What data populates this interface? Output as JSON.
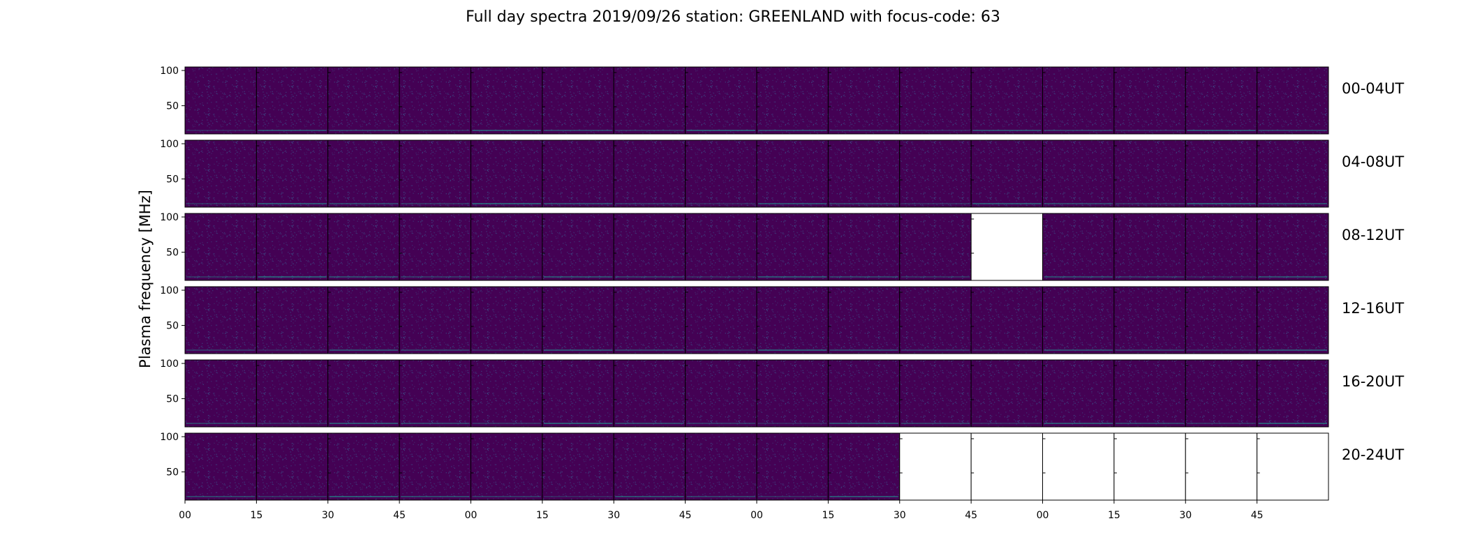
{
  "chart_data": {
    "type": "heatmap",
    "title": "Full day spectra 2019/09/26 station: GREENLAND with focus-code: 63",
    "ylabel": "Plasma frequency [MHz]",
    "xlabel": "",
    "ylim": [
      10,
      105
    ],
    "yticks": [
      "100",
      "50"
    ],
    "ytick_values": [
      100,
      50
    ],
    "xticks": [
      "00",
      "15",
      "30",
      "45",
      "00",
      "15",
      "30",
      "45",
      "00",
      "15",
      "30",
      "45",
      "00",
      "15",
      "30",
      "45"
    ],
    "panels_per_row": 16,
    "minutes_per_panel": 15,
    "colormap": "viridis",
    "colors": {
      "background": "#440154",
      "speckle": "#3b528b",
      "bright": "#21918c",
      "empty": "#ffffff"
    },
    "rows": [
      {
        "label": "00-04UT",
        "missing_panels": []
      },
      {
        "label": "04-08UT",
        "missing_panels": []
      },
      {
        "label": "08-12UT",
        "missing_panels": [
          11
        ]
      },
      {
        "label": "12-16UT",
        "missing_panels": []
      },
      {
        "label": "16-20UT",
        "missing_panels": []
      },
      {
        "label": "20-24UT",
        "missing_panels": [
          10,
          11,
          12,
          13,
          14,
          15
        ]
      }
    ]
  }
}
